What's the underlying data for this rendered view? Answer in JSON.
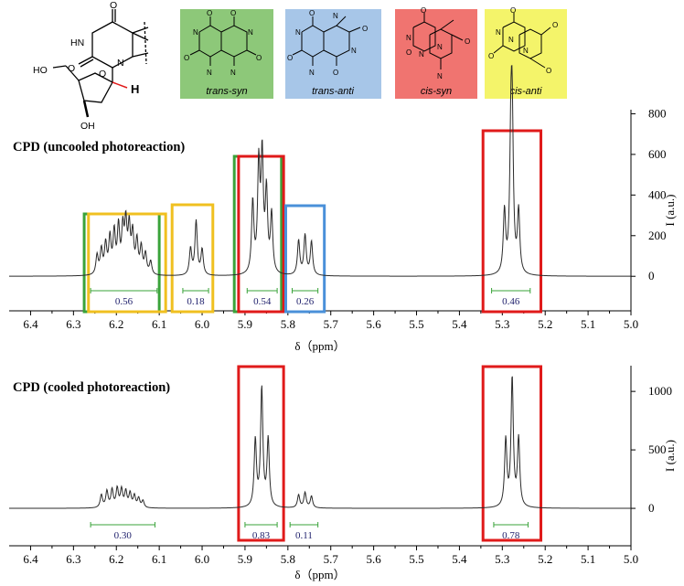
{
  "nucleoside": {
    "atoms": [
      "O",
      "HN",
      "O",
      "N",
      "HO",
      "O",
      "OH",
      "H"
    ]
  },
  "isomers": [
    {
      "label": "trans-syn",
      "color": "#8dc879",
      "atoms": [
        "O",
        "N",
        "O",
        "N",
        "N",
        "O",
        "N",
        "O"
      ]
    },
    {
      "label": "trans-anti",
      "color": "#a7c6e8",
      "atoms": [
        "O",
        "N",
        "O",
        "N",
        "N",
        "O",
        "N",
        "O"
      ]
    },
    {
      "label": "cis-syn",
      "color": "#f07470",
      "atoms": [
        "O",
        "N",
        "O",
        "N",
        "N",
        "O",
        "N"
      ]
    },
    {
      "label": "cis-anti",
      "color": "#f4f46a",
      "atoms": [
        "O",
        "N",
        "O",
        "N",
        "N",
        "O",
        "O"
      ]
    }
  ],
  "colors": {
    "line": "#2b2b2b",
    "integral": "#3aa33a",
    "integral_text": "#22236e",
    "green_box": "#3aa33a",
    "yellow_box": "#f0c020",
    "red_box": "#e01a1a",
    "blue_box": "#4a90d9"
  },
  "chart_data": [
    {
      "type": "line",
      "title": "CPD (uncooled photoreaction)",
      "xlabel": "δ（ppm）",
      "ylabel": "I (a.u.)",
      "xlim": [
        6.45,
        5.0
      ],
      "x_reversed": true,
      "ylim": [
        -170,
        820
      ],
      "x_ticks": [
        "6.4",
        "6.3",
        "6.2",
        "6.1",
        "6.0",
        "5.9",
        "5.8",
        "5.7",
        "5.6",
        "5.5",
        "5.4",
        "5.3",
        "5.2",
        "5.1",
        "5.0"
      ],
      "y_ticks": [
        0,
        200,
        400,
        600,
        800
      ],
      "peaks": [
        {
          "x": 6.245,
          "y": 95
        },
        {
          "x": 6.235,
          "y": 120
        },
        {
          "x": 6.225,
          "y": 145
        },
        {
          "x": 6.215,
          "y": 175
        },
        {
          "x": 6.205,
          "y": 200
        },
        {
          "x": 6.195,
          "y": 225
        },
        {
          "x": 6.185,
          "y": 210
        },
        {
          "x": 6.178,
          "y": 235
        },
        {
          "x": 6.17,
          "y": 220
        },
        {
          "x": 6.162,
          "y": 190
        },
        {
          "x": 6.152,
          "y": 160
        },
        {
          "x": 6.142,
          "y": 130
        },
        {
          "x": 6.132,
          "y": 100
        },
        {
          "x": 6.12,
          "y": 65
        },
        {
          "x": 6.027,
          "y": 130
        },
        {
          "x": 6.014,
          "y": 265
        },
        {
          "x": 6.0,
          "y": 125
        },
        {
          "x": 5.882,
          "y": 350
        },
        {
          "x": 5.868,
          "y": 520
        },
        {
          "x": 5.86,
          "y": 560
        },
        {
          "x": 5.85,
          "y": 390
        },
        {
          "x": 5.838,
          "y": 290
        },
        {
          "x": 5.775,
          "y": 170
        },
        {
          "x": 5.76,
          "y": 195
        },
        {
          "x": 5.745,
          "y": 165
        },
        {
          "x": 5.295,
          "y": 305
        },
        {
          "x": 5.28,
          "y": 560
        },
        {
          "x": 5.277,
          "y": 680
        },
        {
          "x": 5.262,
          "y": 305
        }
      ],
      "integrals": [
        {
          "from": 6.26,
          "to": 6.105,
          "value": "0.56"
        },
        {
          "from": 6.045,
          "to": 5.985,
          "value": "0.18"
        },
        {
          "from": 5.895,
          "to": 5.825,
          "value": "0.54"
        },
        {
          "from": 5.79,
          "to": 5.73,
          "value": "0.26"
        },
        {
          "from": 5.325,
          "to": 5.235,
          "value": "0.46"
        }
      ],
      "highlight_boxes": [
        {
          "from": 6.275,
          "to": 6.1,
          "color": "green"
        },
        {
          "from": 6.265,
          "to": 6.085,
          "color": "yellow"
        },
        {
          "from": 6.07,
          "to": 5.975,
          "color": "yellow"
        },
        {
          "from": 5.925,
          "to": 5.815,
          "color": "green"
        },
        {
          "from": 5.915,
          "to": 5.81,
          "color": "red"
        },
        {
          "from": 5.805,
          "to": 5.715,
          "color": "blue"
        },
        {
          "from": 5.345,
          "to": 5.21,
          "color": "red"
        }
      ]
    },
    {
      "type": "line",
      "title": "CPD (cooled photoreaction)",
      "xlabel": "δ（ppm）",
      "ylabel": "I (a.u.)",
      "xlim": [
        6.45,
        5.0
      ],
      "x_reversed": true,
      "ylim": [
        -320,
        1220
      ],
      "x_ticks": [
        "6.4",
        "6.3",
        "6.2",
        "6.1",
        "6.0",
        "5.9",
        "5.8",
        "5.7",
        "5.6",
        "5.5",
        "5.4",
        "5.3",
        "5.2",
        "5.1",
        "5.0"
      ],
      "y_ticks": [
        0,
        500,
        1000
      ],
      "peaks": [
        {
          "x": 6.235,
          "y": 110
        },
        {
          "x": 6.222,
          "y": 140
        },
        {
          "x": 6.21,
          "y": 150
        },
        {
          "x": 6.198,
          "y": 160
        },
        {
          "x": 6.188,
          "y": 150
        },
        {
          "x": 6.178,
          "y": 135
        },
        {
          "x": 6.168,
          "y": 120
        },
        {
          "x": 6.158,
          "y": 100
        },
        {
          "x": 6.148,
          "y": 80
        },
        {
          "x": 6.138,
          "y": 60
        },
        {
          "x": 5.876,
          "y": 570
        },
        {
          "x": 5.861,
          "y": 1010
        },
        {
          "x": 5.846,
          "y": 575
        },
        {
          "x": 5.775,
          "y": 110
        },
        {
          "x": 5.76,
          "y": 130
        },
        {
          "x": 5.745,
          "y": 100
        },
        {
          "x": 5.292,
          "y": 570
        },
        {
          "x": 5.277,
          "y": 1100
        },
        {
          "x": 5.262,
          "y": 580
        }
      ],
      "integrals": [
        {
          "from": 6.26,
          "to": 6.11,
          "value": "0.30"
        },
        {
          "from": 5.9,
          "to": 5.825,
          "value": "0.83"
        },
        {
          "from": 5.795,
          "to": 5.73,
          "value": "0.11"
        },
        {
          "from": 5.32,
          "to": 5.24,
          "value": "0.78"
        }
      ],
      "highlight_boxes": [
        {
          "from": 5.915,
          "to": 5.81,
          "color": "red"
        },
        {
          "from": 5.345,
          "to": 5.21,
          "color": "red"
        }
      ]
    }
  ]
}
